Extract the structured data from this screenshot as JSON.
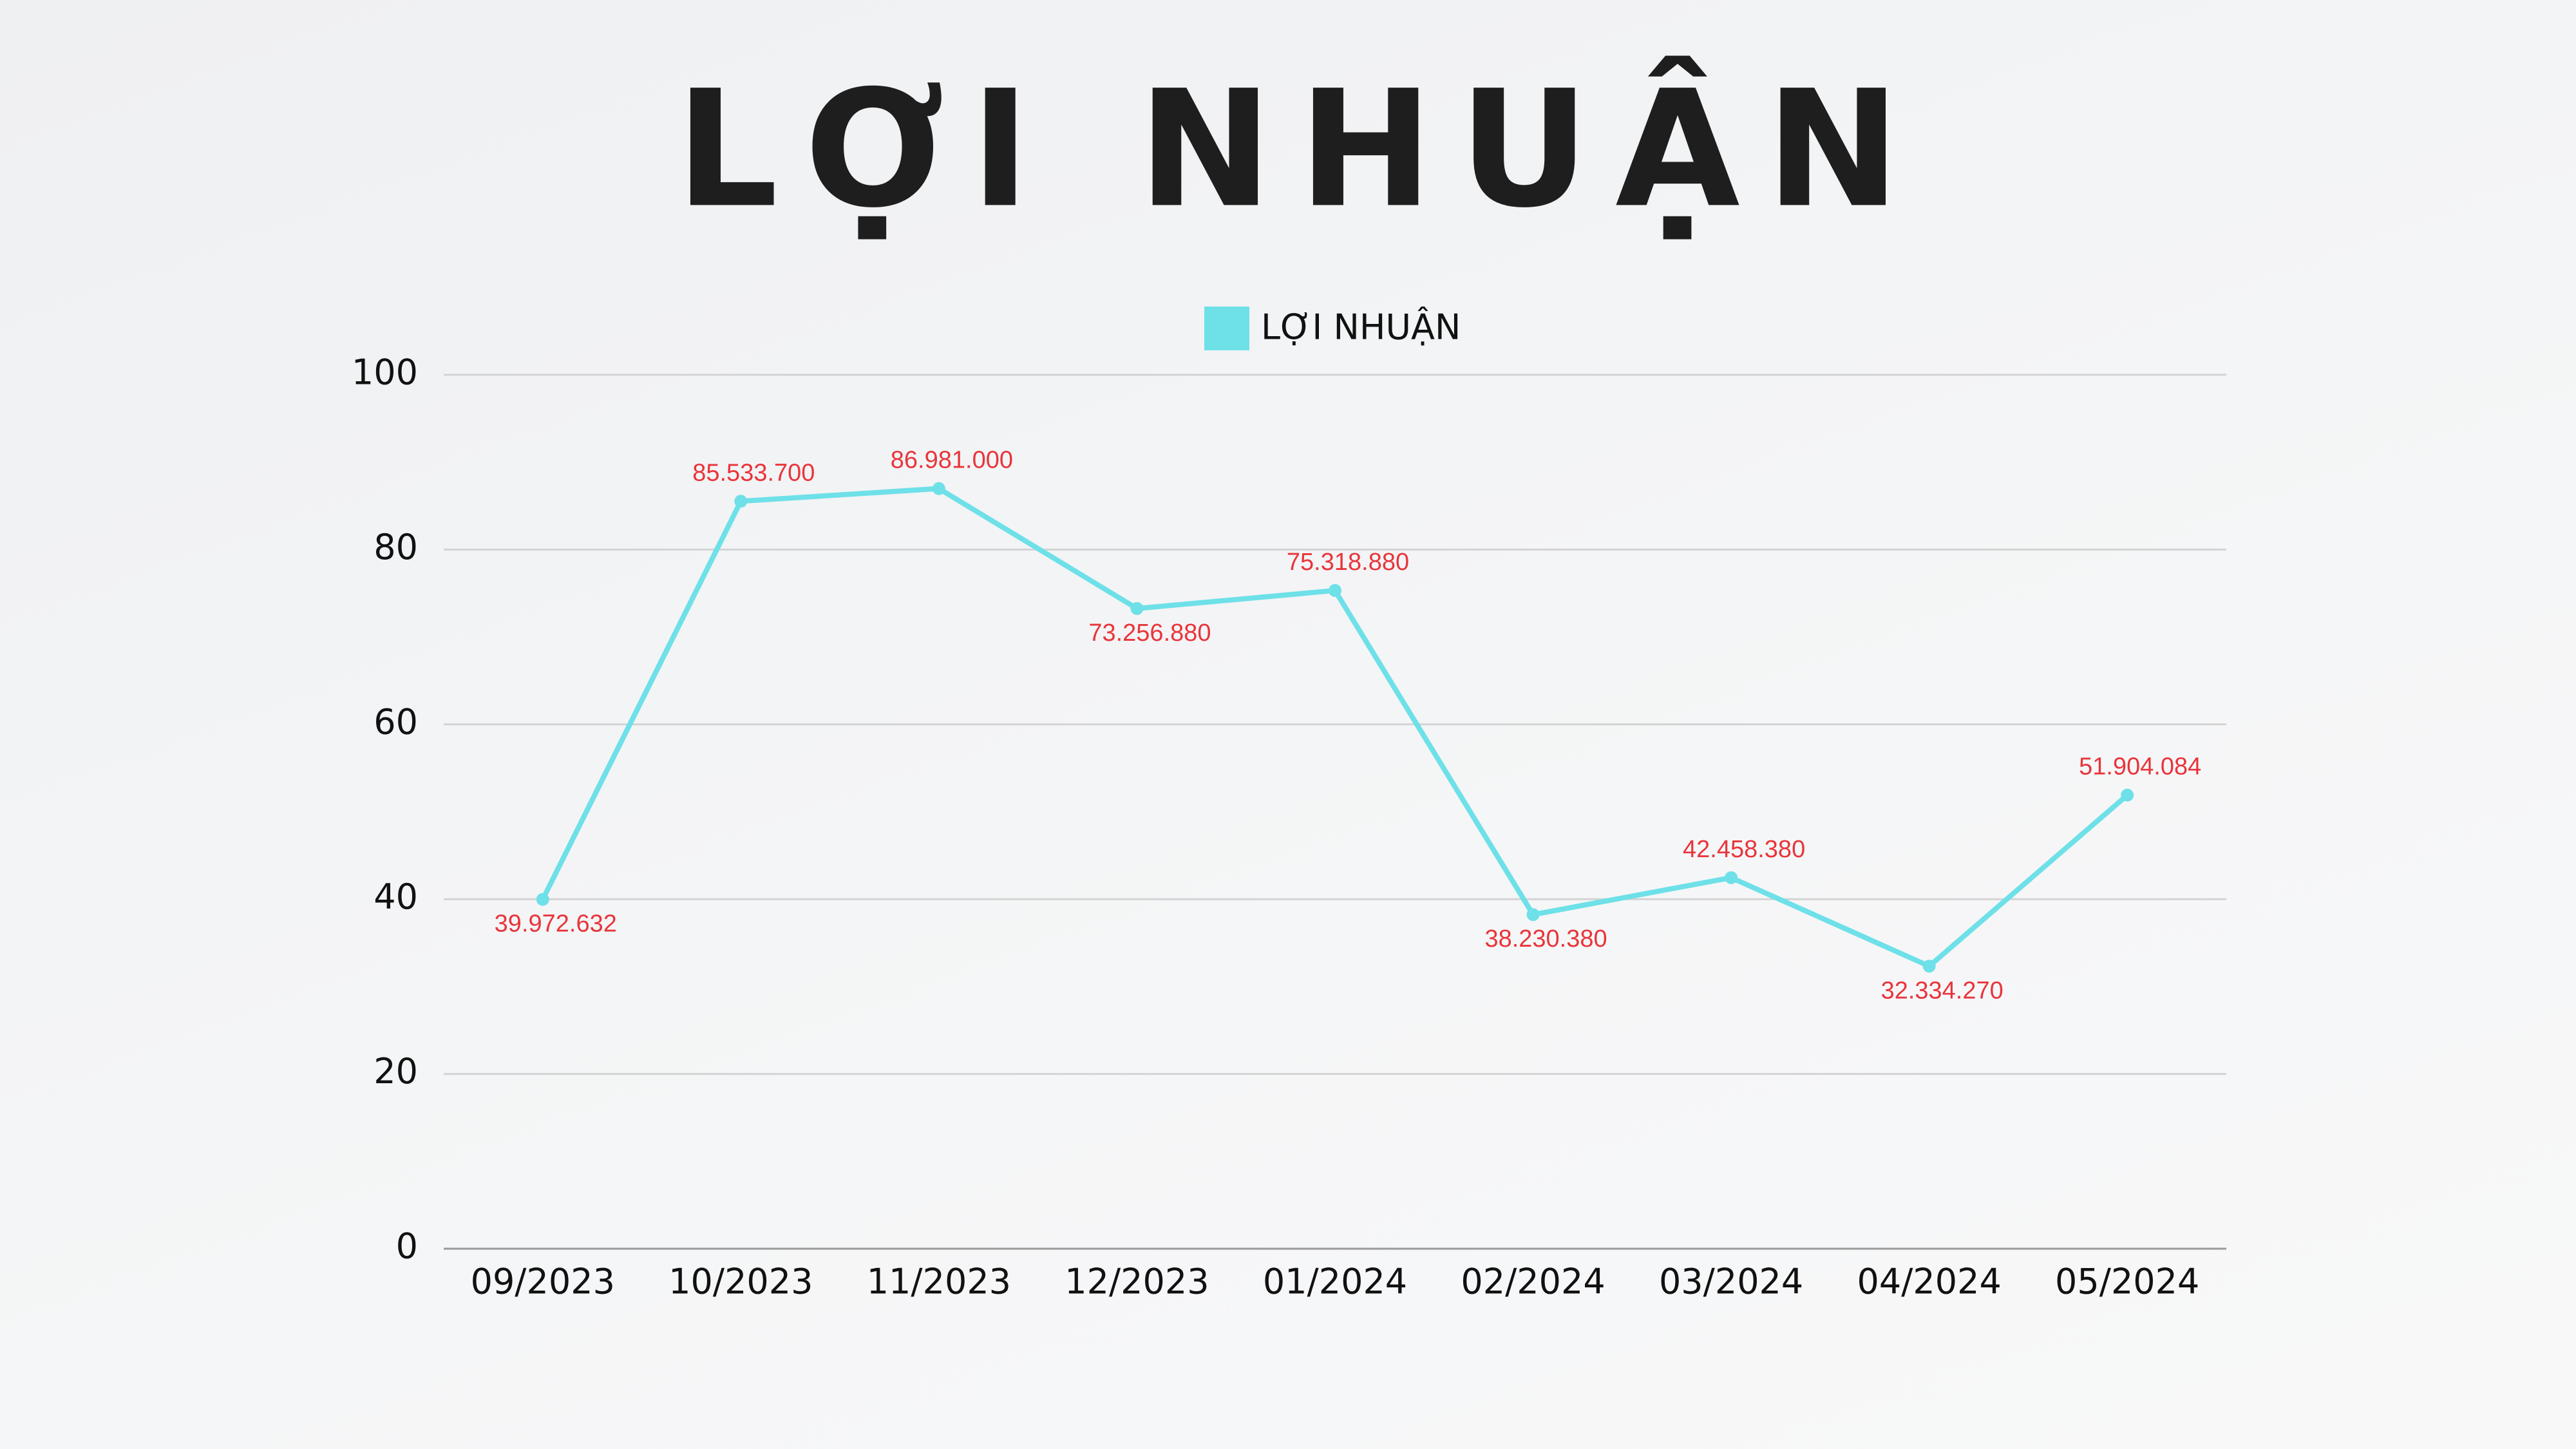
{
  "chart_data": {
    "type": "line",
    "title": "LỢI NHUẬN",
    "categories": [
      "09/2023",
      "10/2023",
      "11/2023",
      "12/2023",
      "01/2024",
      "02/2024",
      "03/2024",
      "04/2024",
      "05/2024"
    ],
    "series": [
      {
        "name": "LỢI NHUẬN",
        "color": "#6ee0e8",
        "values": [
          39.972632,
          85.5337,
          86.981,
          73.25688,
          75.31888,
          38.23038,
          42.45838,
          32.33427,
          51.904084
        ],
        "value_labels": [
          "39.972.632",
          "85.533.700",
          "86.981.000",
          "73.256.880",
          "75.318.880",
          "38.230.380",
          "42.458.380",
          "32.334.270",
          "51.904.084"
        ],
        "label_color": "#e8353b"
      }
    ],
    "ylim": [
      0,
      100
    ],
    "yticks": [
      0,
      20,
      40,
      60,
      80,
      100
    ],
    "grid": true,
    "legend": "top"
  }
}
